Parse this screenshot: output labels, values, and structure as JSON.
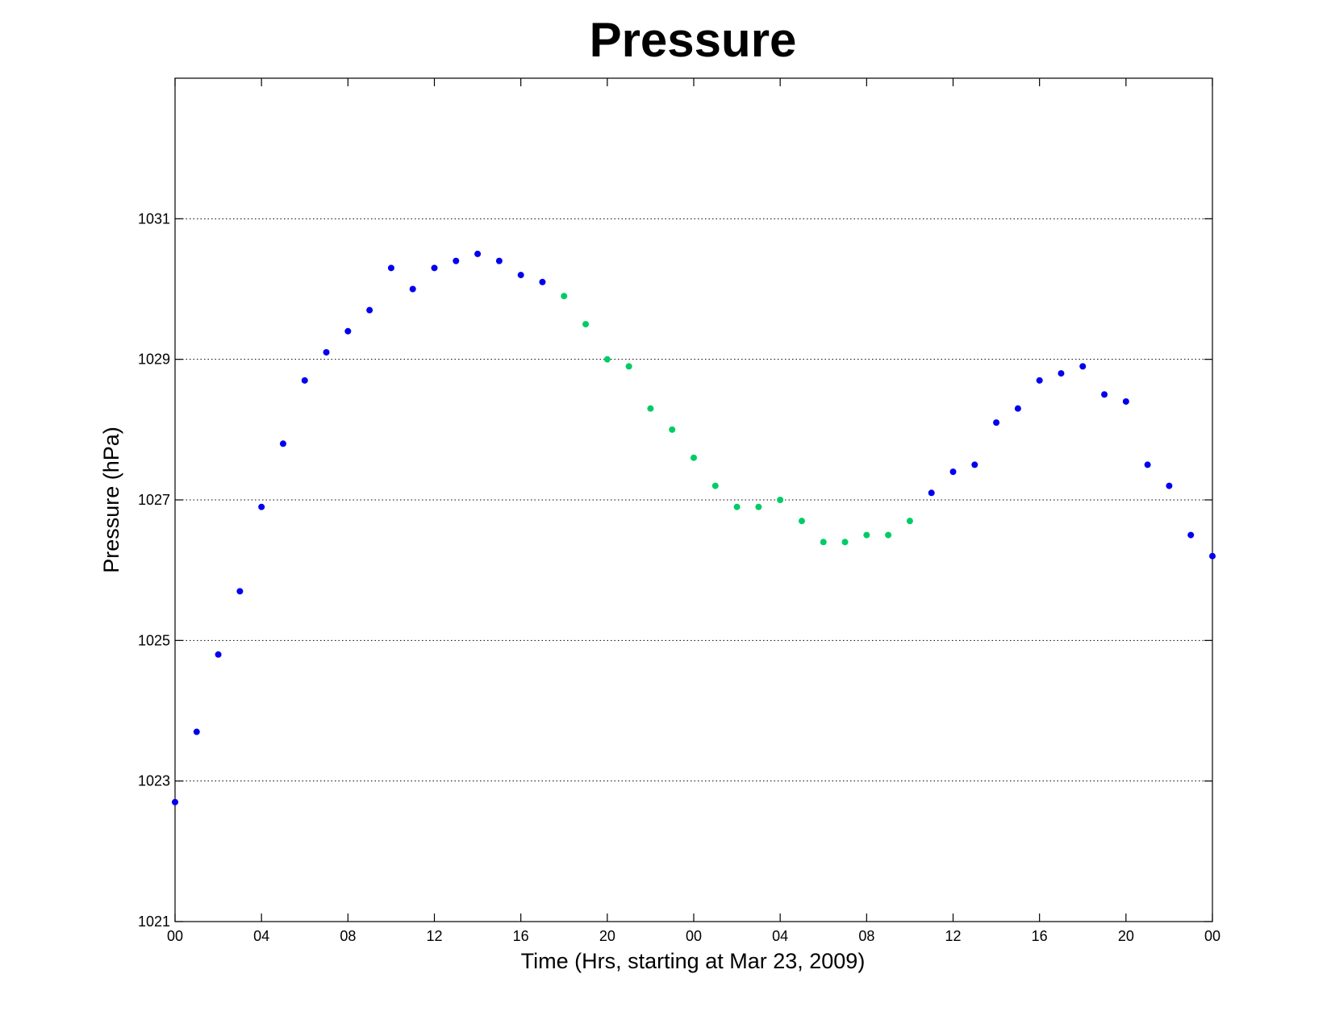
{
  "chart_data": {
    "type": "scatter",
    "title": "Pressure",
    "xlabel": "Time (Hrs, starting at Mar 23, 2009)",
    "ylabel": "Pressure (hPa)",
    "x_unit": "hours",
    "xlim": [
      0,
      48
    ],
    "ylim": [
      1021,
      1033
    ],
    "grid": "horizontal-dotted",
    "x_ticks": [
      {
        "x": 0,
        "label": "00"
      },
      {
        "x": 4,
        "label": "04"
      },
      {
        "x": 8,
        "label": "08"
      },
      {
        "x": 12,
        "label": "12"
      },
      {
        "x": 16,
        "label": "16"
      },
      {
        "x": 20,
        "label": "20"
      },
      {
        "x": 24,
        "label": "00"
      },
      {
        "x": 28,
        "label": "04"
      },
      {
        "x": 32,
        "label": "08"
      },
      {
        "x": 36,
        "label": "12"
      },
      {
        "x": 40,
        "label": "16"
      },
      {
        "x": 44,
        "label": "20"
      },
      {
        "x": 48,
        "label": "00"
      }
    ],
    "y_ticks": [
      {
        "y": 1021,
        "label": "1021"
      },
      {
        "y": 1023,
        "label": "1023"
      },
      {
        "y": 1025,
        "label": "1025"
      },
      {
        "y": 1027,
        "label": "1027"
      },
      {
        "y": 1029,
        "label": "1029"
      },
      {
        "y": 1031,
        "label": "1031"
      }
    ],
    "series": [
      {
        "color": "#0000ee",
        "x": [
          0,
          1,
          2,
          3,
          4,
          5,
          6,
          7,
          8,
          9,
          10,
          11,
          12,
          13,
          14,
          15,
          16,
          17,
          35,
          36,
          37,
          38,
          39,
          40,
          41,
          42,
          43,
          44,
          45,
          46,
          47,
          48
        ],
        "y": [
          1022.7,
          1023.7,
          1024.8,
          1025.7,
          1026.9,
          1027.8,
          1028.7,
          1029.1,
          1029.4,
          1029.7,
          1030.3,
          1030.0,
          1030.3,
          1030.4,
          1030.5,
          1030.4,
          1030.2,
          1030.1,
          1027.1,
          1027.4,
          1027.5,
          1028.1,
          1028.3,
          1028.7,
          1028.8,
          1028.9,
          1028.5,
          1028.4,
          1027.5,
          1027.2,
          1026.5,
          1026.2
        ]
      },
      {
        "color": "#00cc66",
        "x": [
          18,
          19,
          20,
          21,
          22,
          23,
          24,
          25,
          26,
          27,
          28,
          29,
          30,
          31,
          32,
          33,
          34
        ],
        "y": [
          1029.9,
          1029.5,
          1029.0,
          1028.9,
          1028.3,
          1028.0,
          1027.6,
          1027.2,
          1026.9,
          1026.9,
          1027.0,
          1026.7,
          1026.4,
          1026.4,
          1026.5,
          1026.5,
          1026.7
        ]
      }
    ]
  }
}
